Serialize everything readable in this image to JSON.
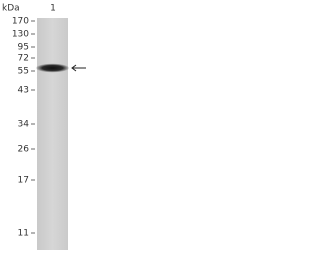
{
  "header": {
    "unit": "kDa",
    "lane": "1"
  },
  "markers": [
    "170",
    "130",
    "95",
    "72",
    "55",
    "43",
    "34",
    "26",
    "17",
    "11"
  ]
}
